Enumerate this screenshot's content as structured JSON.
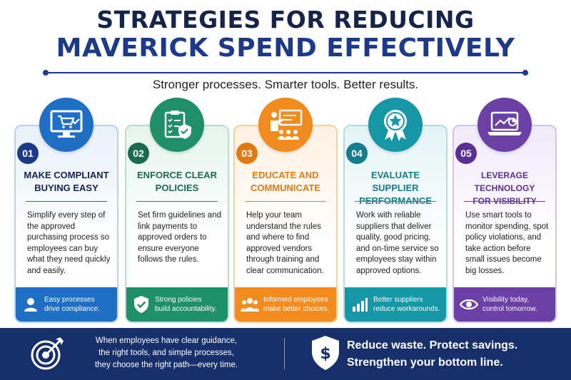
{
  "header": {
    "title_line1": "STRATEGIES FOR REDUCING",
    "title_line2": "MAVERICK SPEND EFFECTIVELY",
    "subtitle": "Stronger processes. Smarter tools. Better results."
  },
  "cards": [
    {
      "number": "01",
      "title_line1": "MAKE COMPLIANT",
      "title_line2": "BUYING EASY",
      "body": "Simplify every step of the approved purchasing process so employees can buy what they need quickly and easily.",
      "footer_line1": "Easy processes",
      "footer_line2": "drive compliance.",
      "icon": "shopping-cart-monitor-icon",
      "footer_icon": "user-icon",
      "color": "#1f6fc4"
    },
    {
      "number": "02",
      "title_line1": "ENFORCE CLEAR",
      "title_line2": "POLICIES",
      "body": "Set firm guidelines and link payments to approved orders to ensure everyone follows the rules.",
      "footer_line1": "Strong policies",
      "footer_line2": "build accountability.",
      "icon": "clipboard-shield-icon",
      "footer_icon": "shield-check-icon",
      "color": "#1f8f6a"
    },
    {
      "number": "03",
      "title_line1": "EDUCATE AND",
      "title_line2": "COMMUNICATE",
      "body": "Help your team understand the rules and where to find approved vendors through training and clear communication.",
      "footer_line1": "Informed employees",
      "footer_line2": "make better choices.",
      "icon": "presentation-board-icon",
      "footer_icon": "group-icon",
      "color": "#f28c1e"
    },
    {
      "number": "04",
      "title_line1": "EVALUATE SUPPLIER",
      "title_line2": "PERFORMANCE",
      "body": "Work with reliable suppliers that deliver quality, good pricing, and on-time service so employees stay within approved options.",
      "footer_line1": "Better suppliers",
      "footer_line2": "reduce workarounds.",
      "icon": "award-ribbon-icon",
      "footer_icon": "bar-chart-icon",
      "color": "#1597a6"
    },
    {
      "number": "05",
      "title_line1": "LEVERAGE TECHNOLOGY",
      "title_line2": "FOR VISIBILITY",
      "body": "Use smart tools to monitor spending, spot policy violations, and take action before small issues become big losses.",
      "footer_line1": "Visibility today,",
      "footer_line2": "control tomorrow.",
      "icon": "laptop-chart-icon",
      "footer_icon": "eye-icon",
      "color": "#6a3fa6"
    }
  ],
  "footer": {
    "left_line1": "When employees have clear guidance,",
    "left_line2": "the right tools, and simple processes,",
    "left_line3": "they choose the right path—every time.",
    "right_line1": "Reduce waste. Protect savings.",
    "right_line2": "Strengthen your bottom line.",
    "left_icon": "target-arrow-icon",
    "right_icon": "shield-dollar-icon"
  }
}
